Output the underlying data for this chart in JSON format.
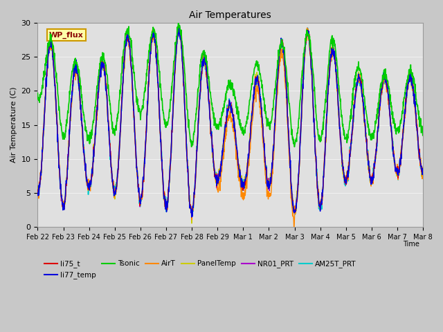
{
  "title": "Air Temperatures",
  "ylabel": "Air Temperature (C)",
  "xlabel": "Time",
  "ylim": [
    0,
    30
  ],
  "fig_bg_color": "#c8c8c8",
  "plot_bg_color": "#e0e0e0",
  "grid_color": "#f0f0f0",
  "series": {
    "li75_t": {
      "color": "#dd0000",
      "lw": 1.0
    },
    "li77_temp": {
      "color": "#0000dd",
      "lw": 1.0
    },
    "Tsonic": {
      "color": "#00cc00",
      "lw": 1.2
    },
    "AirT": {
      "color": "#ff8800",
      "lw": 1.0
    },
    "PanelTemp": {
      "color": "#cccc00",
      "lw": 1.0
    },
    "NR01_PRT": {
      "color": "#aa00cc",
      "lw": 1.0
    },
    "AM25T_PRT": {
      "color": "#00cccc",
      "lw": 1.2
    }
  },
  "annotation_text": "WP_flux",
  "tick_labels": [
    "Feb 22",
    "Feb 23",
    "Feb 24",
    "Feb 25",
    "Feb 26",
    "Feb 27",
    "Feb 28",
    "Feb 29",
    "Mar 1",
    "Mar 2",
    "Mar 3",
    "Mar 4",
    "Mar 5",
    "Mar 6",
    "Mar 7",
    "Mar 8"
  ],
  "n_points": 1440,
  "days": 15
}
